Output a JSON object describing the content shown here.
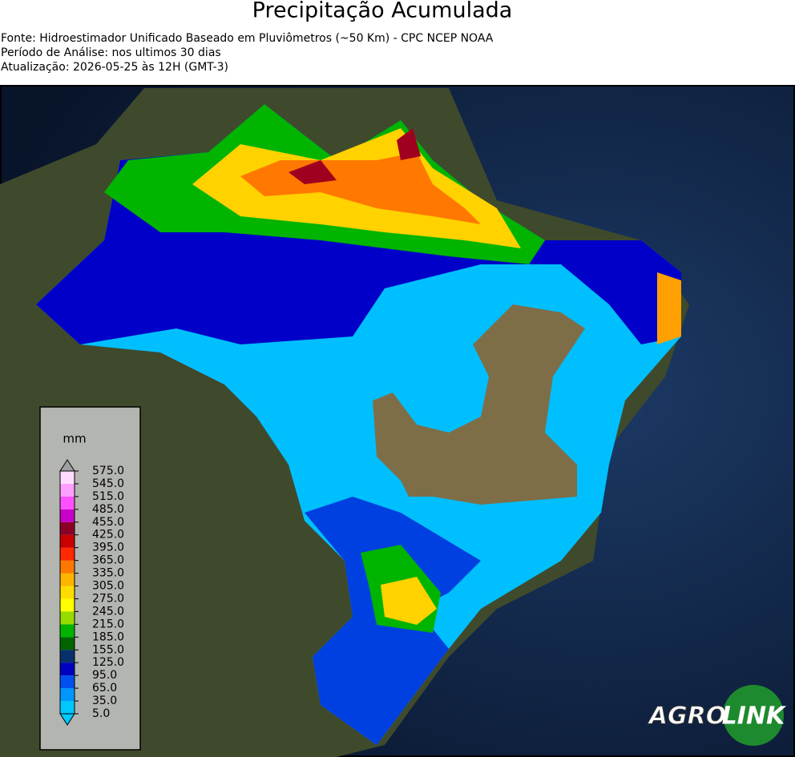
{
  "header": {
    "title": "Precipitação Acumulada",
    "lines": [
      "Fonte: Hidroestimador Unificado Baseado em Pluviômetros (~50 Km) - CPC NCEP NOAA",
      "Período de Análise: nos ultimos 30 dias",
      "Atualização: 2026-05-25 às 12H (GMT-3)"
    ]
  },
  "colorbar": {
    "unit": "mm",
    "ticks": [
      {
        "value": 5,
        "label": "5.0"
      },
      {
        "value": 35,
        "label": "35.0"
      },
      {
        "value": 65,
        "label": "65.0"
      },
      {
        "value": 95,
        "label": "95.0"
      },
      {
        "value": 125,
        "label": "125.0"
      },
      {
        "value": 155,
        "label": "155.0"
      },
      {
        "value": 185,
        "label": "185.0"
      },
      {
        "value": 215,
        "label": "215.0"
      },
      {
        "value": 245,
        "label": "245.0"
      },
      {
        "value": 275,
        "label": "275.0"
      },
      {
        "value": 305,
        "label": "305.0"
      },
      {
        "value": 335,
        "label": "335.0"
      },
      {
        "value": 365,
        "label": "365.0"
      },
      {
        "value": 395,
        "label": "395.0"
      },
      {
        "value": 425,
        "label": "425.0"
      },
      {
        "value": 455,
        "label": "455.0"
      },
      {
        "value": 485,
        "label": "485.0"
      },
      {
        "value": 515,
        "label": "515.0"
      },
      {
        "value": 545,
        "label": "545.0"
      },
      {
        "value": 575,
        "label": "575.0"
      }
    ],
    "colors": [
      "#00c8ff",
      "#0096ff",
      "#0050f0",
      "#0000c0",
      "#08306b",
      "#006400",
      "#00b400",
      "#96dc00",
      "#ffff00",
      "#ffdc00",
      "#ffb400",
      "#ff7800",
      "#ff2800",
      "#c80000",
      "#8c0028",
      "#c800c8",
      "#ff50ff",
      "#ffa0ff",
      "#ffdcff"
    ],
    "under_color": "#00c8ff",
    "over_color": "#a0a0a0"
  },
  "logo": {
    "left": "AGRO",
    "right": "LINK"
  }
}
